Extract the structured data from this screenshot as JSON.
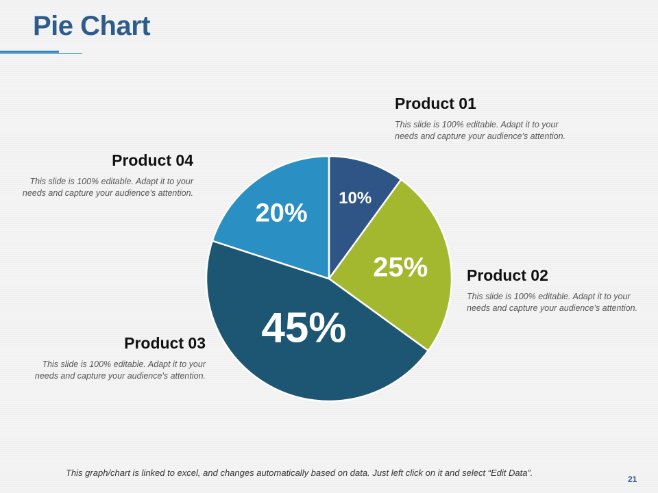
{
  "slide": {
    "title": "Pie Chart",
    "footer_note": "This graph/chart is linked to excel, and changes automatically based on data. Just left click on it and select “Edit Data”.",
    "page_number": "21"
  },
  "colors": {
    "title": "#2e5b8c",
    "accent_rule": "#2a86bd",
    "product_01": "#2f5586",
    "product_02": "#a3b82e",
    "product_03": "#1d5672",
    "product_04": "#2a8fc2"
  },
  "chart_data": {
    "type": "pie",
    "title": "",
    "categories": [
      "Product 01",
      "Product 02",
      "Product 03",
      "Product 04"
    ],
    "values": [
      10,
      25,
      45,
      20
    ],
    "labels": [
      "10%",
      "25%",
      "45%",
      "20%"
    ],
    "colors": [
      "#2f5586",
      "#a3b82e",
      "#1d5672",
      "#2a8fc2"
    ],
    "start": "12 o'clock, clockwise"
  },
  "products": [
    {
      "title": "Product 01",
      "text": "This slide is 100% editable. Adapt it to your needs and capture your audience's attention."
    },
    {
      "title": "Product 02",
      "text": "This slide is 100% editable. Adapt it to your needs and capture your audience's attention."
    },
    {
      "title": "Product 03",
      "text": "This slide is 100% editable. Adapt it to your needs and capture your audience's attention."
    },
    {
      "title": "Product 04",
      "text": "This slide is 100% editable. Adapt it to your needs and capture your audience's attention."
    }
  ]
}
